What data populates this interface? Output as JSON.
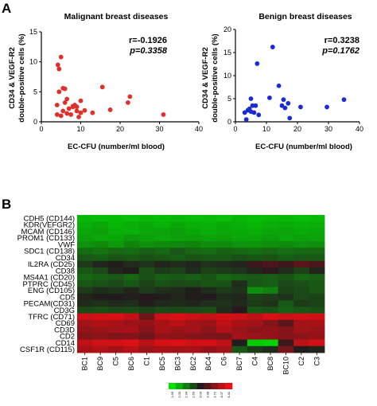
{
  "panel_a": {
    "letter": "A",
    "plots": [
      {
        "title": "Malignant breast diseases",
        "xlabel": "EC-CFU (number/ml blood)",
        "ylabel_line1": "CD34 & VEGF-R2",
        "ylabel_line2": "double-positive cells (%)",
        "stat_r": "r=-0.1926",
        "stat_p": "p=0.3358",
        "color": "#e0302a"
      },
      {
        "title": "Benign breast diseases",
        "xlabel": "EC-CFU (number/ml blood)",
        "ylabel_line1": "CD34 & VEGF-R2",
        "ylabel_line2": "double-positive cells (%)",
        "stat_r": "r=0.3238",
        "stat_p": "p=0.1762",
        "color": "#1a2bd6"
      }
    ]
  },
  "panel_b": {
    "letter": "B",
    "color_scale_labels": [
      "1.65",
      "2.00",
      "2.34",
      "2.69",
      "3.03",
      "3.38",
      "3.72",
      "4.07",
      "4.41"
    ]
  },
  "chart_data": [
    {
      "type": "scatter",
      "title": "Malignant breast diseases",
      "xlabel": "EC-CFU (number/ml blood)",
      "ylabel": "CD34 & VEGF-R2 double-positive cells (%)",
      "xlim": [
        0,
        40
      ],
      "ylim": [
        0,
        15
      ],
      "xticks": [
        0,
        10,
        20,
        30,
        40
      ],
      "yticks": [
        0,
        5,
        10,
        15
      ],
      "x": [
        4.2,
        5.0,
        4.5,
        5.5,
        4.0,
        6.0,
        6.5,
        7.0,
        5.5,
        8.0,
        8.5,
        9.0,
        10.0,
        7.5,
        5.0,
        4.0,
        6.0,
        9.5,
        4.5,
        10.0,
        15.5,
        22.5,
        22.0,
        17.5,
        31.0,
        8.0,
        11.0,
        13.0,
        6.5,
        9.0
      ],
      "y": [
        9.5,
        10.8,
        8.8,
        5.6,
        2.8,
        5.5,
        3.8,
        2.2,
        1.8,
        2.5,
        2.8,
        2.5,
        1.5,
        1.2,
        1.0,
        1.2,
        3.2,
        0.8,
        5.0,
        3.5,
        5.8,
        4.2,
        3.2,
        2.0,
        1.2,
        2.6,
        1.9,
        1.5,
        1.4,
        1.8
      ],
      "annotations": [
        "r=-0.1926",
        "p=0.3358"
      ]
    },
    {
      "type": "scatter",
      "title": "Benign breast diseases",
      "xlabel": "EC-CFU (number/ml blood)",
      "ylabel": "CD34 & VEGF-R2 double-positive cells (%)",
      "xlim": [
        0,
        40
      ],
      "ylim": [
        0,
        20
      ],
      "xticks": [
        0,
        10,
        20,
        30,
        40
      ],
      "yticks": [
        0,
        5,
        10,
        15,
        20
      ],
      "x": [
        3.0,
        3.5,
        4.0,
        5.0,
        5.5,
        5.0,
        4.5,
        6.5,
        7.0,
        7.5,
        6.0,
        11.0,
        12.0,
        14.0,
        15.0,
        17.0,
        15.5,
        17.5,
        21.0,
        29.5,
        35.0,
        16.0
      ],
      "y": [
        2.0,
        0.5,
        2.5,
        5.0,
        3.5,
        2.2,
        2.8,
        3.5,
        12.6,
        1.5,
        2.0,
        5.2,
        16.2,
        7.8,
        3.5,
        4.0,
        4.8,
        0.8,
        3.2,
        3.2,
        4.8,
        3.0
      ],
      "annotations": [
        "r=0.3238",
        "p=0.1762"
      ]
    },
    {
      "type": "heatmap",
      "rows": [
        "CDH5 (CD144)",
        "KDR(VEFGR2)",
        "MCAM (CD146)",
        "PROM1 (CD133)",
        "VWF",
        "SDC1 (CD138)",
        "CD34",
        "IL2RA (CD25)",
        "CD38",
        "MS4A1 (CD20)",
        "PTPRC (CD45)",
        "ENG (CD105)",
        "CD5",
        "PECAM(CD31)",
        "CD3G",
        "TFRC (CD71)",
        "CD69",
        "CD3D",
        "CD2",
        "CD14",
        "CSF1R (CD115)"
      ],
      "columns": [
        "BC1",
        "BC9",
        "C5",
        "BC6",
        "C1",
        "BC5",
        "BC3",
        "BC2",
        "BC4",
        "C6",
        "BC7",
        "C4",
        "BC8",
        "BC10",
        "C2",
        "C3"
      ],
      "scale": [
        1.65,
        2.0,
        2.34,
        2.69,
        3.03,
        3.38,
        3.72,
        4.07,
        4.41
      ],
      "values": [
        [
          1.95,
          1.9,
          1.92,
          1.88,
          1.93,
          1.9,
          1.95,
          1.9,
          1.92,
          1.88,
          1.94,
          1.9,
          1.92,
          1.95,
          1.9,
          1.93
        ],
        [
          2.0,
          2.05,
          1.95,
          2.0,
          2.02,
          1.97,
          2.05,
          2.0,
          1.98,
          2.02,
          2.0,
          1.95,
          2.0,
          2.02,
          1.98,
          2.0
        ],
        [
          2.05,
          2.1,
          2.0,
          1.98,
          2.05,
          2.08,
          2.12,
          2.05,
          2.0,
          2.05,
          2.02,
          2.0,
          2.05,
          2.08,
          2.02,
          2.05
        ],
        [
          2.1,
          2.05,
          2.05,
          2.15,
          2.1,
          2.05,
          2.1,
          2.12,
          2.08,
          2.1,
          2.05,
          2.08,
          2.12,
          2.05,
          2.1,
          2.08
        ],
        [
          2.2,
          2.25,
          2.15,
          2.3,
          2.2,
          2.25,
          2.28,
          2.3,
          2.22,
          2.25,
          2.2,
          2.18,
          2.22,
          2.25,
          2.2,
          2.22
        ],
        [
          2.45,
          2.4,
          2.5,
          2.45,
          2.55,
          2.48,
          2.6,
          2.5,
          2.45,
          2.52,
          2.48,
          2.45,
          2.5,
          2.42,
          2.48,
          2.5
        ],
        [
          2.6,
          2.55,
          2.62,
          2.58,
          2.65,
          2.6,
          2.55,
          2.62,
          2.6,
          2.58,
          2.65,
          2.6,
          2.62,
          2.55,
          2.6,
          2.58
        ],
        [
          2.8,
          2.95,
          3.0,
          2.9,
          2.85,
          2.95,
          2.9,
          2.95,
          2.85,
          2.9,
          2.95,
          3.2,
          3.3,
          3.2,
          3.4,
          3.3
        ],
        [
          2.6,
          2.7,
          2.95,
          3.0,
          2.65,
          2.8,
          2.75,
          2.9,
          2.75,
          2.8,
          2.85,
          2.95,
          3.1,
          2.9,
          2.75,
          2.95
        ],
        [
          2.5,
          2.55,
          2.6,
          2.5,
          2.65,
          2.55,
          2.6,
          2.55,
          2.62,
          2.5,
          2.55,
          2.6,
          2.55,
          2.62,
          2.5,
          2.55
        ],
        [
          2.6,
          2.65,
          2.7,
          2.6,
          2.75,
          2.65,
          2.7,
          2.68,
          2.62,
          2.65,
          2.9,
          2.6,
          2.55,
          2.7,
          2.65,
          2.6
        ],
        [
          2.8,
          2.9,
          2.85,
          2.95,
          2.8,
          2.88,
          2.92,
          3.0,
          2.9,
          2.8,
          2.85,
          2.2,
          2.3,
          2.75,
          2.7,
          2.6
        ],
        [
          2.95,
          3.0,
          3.02,
          2.98,
          3.05,
          3.0,
          2.95,
          3.0,
          3.02,
          2.9,
          2.95,
          2.75,
          2.8,
          2.85,
          2.7,
          2.75
        ],
        [
          2.9,
          2.85,
          2.92,
          2.88,
          3.0,
          2.92,
          2.9,
          2.95,
          2.88,
          2.85,
          2.9,
          2.8,
          2.85,
          2.6,
          2.8,
          2.75
        ],
        [
          2.7,
          2.65,
          2.72,
          2.68,
          2.75,
          2.7,
          2.72,
          2.7,
          2.65,
          2.9,
          3.05,
          2.6,
          2.65,
          2.55,
          2.6,
          2.65
        ],
        [
          4.2,
          4.25,
          4.3,
          4.15,
          3.55,
          4.2,
          4.3,
          4.2,
          4.15,
          4.25,
          4.2,
          4.1,
          4.3,
          4.2,
          4.25,
          4.2
        ],
        [
          3.9,
          4.0,
          3.95,
          3.85,
          3.8,
          3.95,
          4.05,
          3.9,
          3.85,
          4.1,
          3.95,
          3.9,
          3.7,
          3.4,
          3.9,
          3.95
        ],
        [
          3.8,
          3.85,
          3.9,
          3.95,
          3.7,
          3.95,
          3.85,
          3.9,
          3.75,
          4.0,
          3.85,
          3.75,
          3.8,
          3.7,
          3.9,
          3.85
        ],
        [
          3.7,
          3.75,
          3.65,
          3.7,
          3.55,
          3.8,
          3.75,
          3.7,
          3.65,
          3.6,
          3.9,
          3.85,
          3.8,
          3.7,
          3.75,
          3.8
        ],
        [
          4.1,
          4.2,
          4.25,
          4.3,
          4.05,
          4.25,
          4.3,
          4.2,
          4.25,
          4.1,
          3.0,
          1.8,
          1.75,
          3.2,
          4.1,
          4.2
        ],
        [
          3.95,
          4.0,
          3.9,
          4.05,
          3.85,
          3.95,
          3.9,
          3.95,
          3.8,
          3.9,
          2.6,
          2.8,
          2.9,
          3.6,
          3.0,
          2.95
        ]
      ]
    }
  ]
}
